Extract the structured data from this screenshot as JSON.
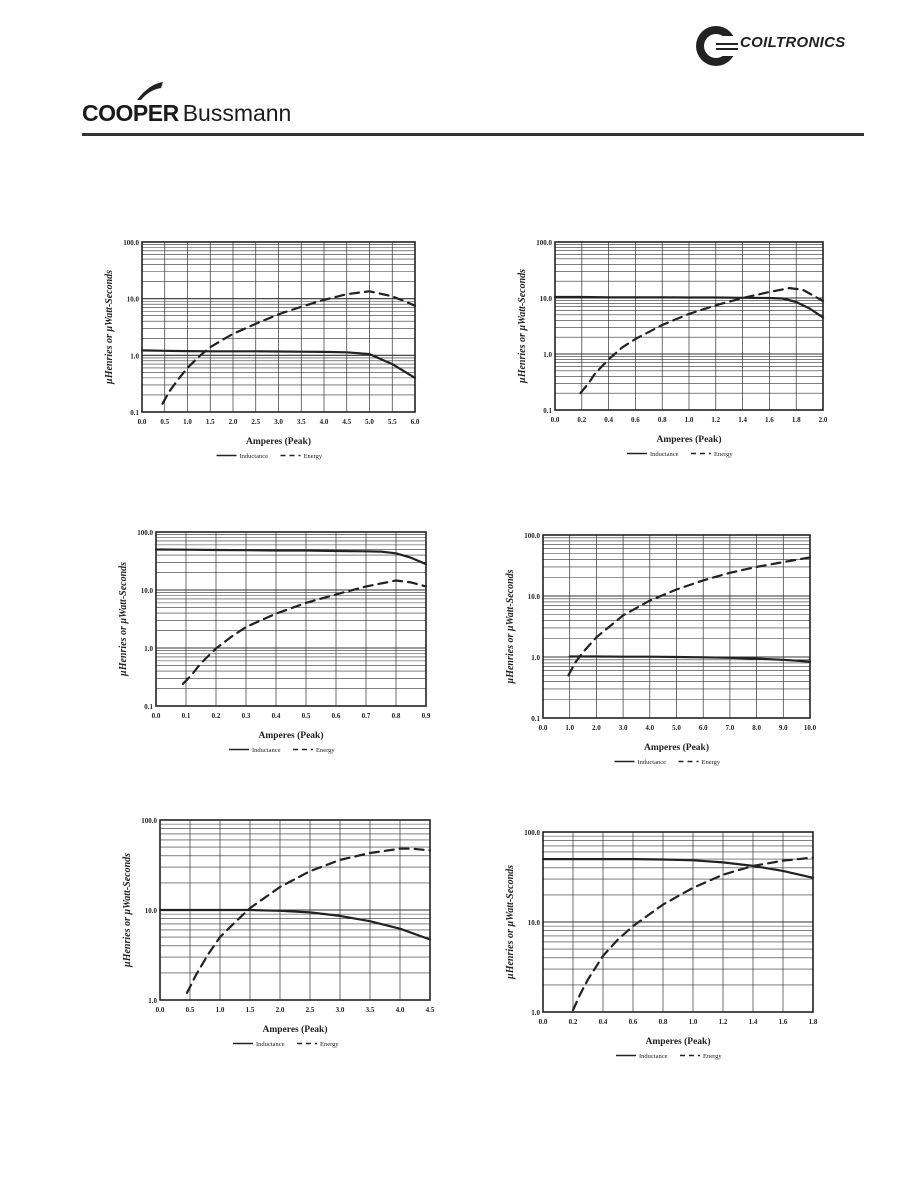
{
  "brand": {
    "coiltronics": "COILTRONICS",
    "cooper_bold": "COOPER",
    "cooper_regular": "Bussmann"
  },
  "chart_data": [
    {
      "type": "line",
      "log_y": true,
      "grid": true,
      "legend_position": "bottom",
      "ylabel": "µHenries or  µWatt-Seconds",
      "xlabel": "Amperes (Peak)",
      "xlim": [
        0,
        6
      ],
      "ylim": [
        0.1,
        100
      ],
      "xticks": [
        "0.0",
        "0.5",
        "1.0",
        "1.5",
        "2.0",
        "2.5",
        "3.0",
        "3.5",
        "4.0",
        "4.5",
        "5.0",
        "5.5",
        "6.0"
      ],
      "yticks": [
        {
          "v": 0.1,
          "l": "0.1"
        },
        {
          "v": 1,
          "l": "1.0"
        },
        {
          "v": 10,
          "l": "10.0"
        },
        {
          "v": 100,
          "l": "100.0"
        }
      ],
      "series": [
        {
          "name": "Inductance",
          "style": "solid",
          "x": [
            0,
            0.5,
            1,
            1.5,
            2,
            2.5,
            3,
            3.5,
            4,
            4.5,
            5,
            5.5,
            6
          ],
          "y": [
            1.22,
            1.2,
            1.19,
            1.18,
            1.18,
            1.18,
            1.17,
            1.16,
            1.15,
            1.13,
            1.05,
            0.7,
            0.4
          ]
        },
        {
          "name": "Energy",
          "style": "dashed",
          "x": [
            0.45,
            0.6,
            0.8,
            1,
            1.25,
            1.5,
            2,
            2.5,
            3,
            3.5,
            4,
            4.5,
            5,
            5.5,
            6
          ],
          "y": [
            0.14,
            0.23,
            0.38,
            0.6,
            0.95,
            1.4,
            2.4,
            3.6,
            5.3,
            7.2,
            9.5,
            12,
            13.5,
            11,
            7.5
          ]
        }
      ]
    },
    {
      "type": "line",
      "log_y": true,
      "grid": true,
      "legend_position": "bottom",
      "ylabel": "µHenries or  µWatt-Seconds",
      "xlabel": "Amperes (Peak)",
      "xlim": [
        0,
        2
      ],
      "ylim": [
        0.1,
        100
      ],
      "xticks": [
        "0.0",
        "0.2",
        "0.4",
        "0.6",
        "0.8",
        "1.0",
        "1.2",
        "1.4",
        "1.6",
        "1.8",
        "2.0"
      ],
      "yticks": [
        {
          "v": 0.1,
          "l": "0.1"
        },
        {
          "v": 1,
          "l": "1.0"
        },
        {
          "v": 10,
          "l": "10.0"
        },
        {
          "v": 100,
          "l": "100.0"
        }
      ],
      "series": [
        {
          "name": "Inductance",
          "style": "solid",
          "x": [
            0,
            0.2,
            0.4,
            0.6,
            0.8,
            1,
            1.2,
            1.4,
            1.6,
            1.7,
            1.8,
            1.9,
            2
          ],
          "y": [
            10.4,
            10.4,
            10.3,
            10.3,
            10.3,
            10.2,
            10.2,
            10.1,
            10,
            9.8,
            8.5,
            6.5,
            4.5
          ]
        },
        {
          "name": "Energy",
          "style": "dashed",
          "x": [
            0.19,
            0.25,
            0.3,
            0.4,
            0.5,
            0.6,
            0.8,
            1,
            1.2,
            1.4,
            1.6,
            1.75,
            1.85,
            2
          ],
          "y": [
            0.2,
            0.3,
            0.45,
            0.8,
            1.3,
            1.85,
            3.3,
            5.2,
            7.4,
            10,
            12.8,
            15,
            14,
            8.8
          ]
        }
      ]
    },
    {
      "type": "line",
      "log_y": true,
      "grid": true,
      "legend_position": "bottom",
      "ylabel": "µHenries or  µWatt-Seconds",
      "xlabel": "Amperes (Peak)",
      "xlim": [
        0,
        0.9
      ],
      "ylim": [
        0.1,
        100
      ],
      "xticks": [
        "0.0",
        "0.1",
        "0.2",
        "0.3",
        "0.4",
        "0.5",
        "0.6",
        "0.7",
        "0.8",
        "0.9"
      ],
      "yticks": [
        {
          "v": 0.1,
          "l": "0.1"
        },
        {
          "v": 1,
          "l": "1.0"
        },
        {
          "v": 10,
          "l": "10.0"
        },
        {
          "v": 100,
          "l": "100.0"
        }
      ],
      "series": [
        {
          "name": "Inductance",
          "style": "solid",
          "x": [
            0,
            0.1,
            0.2,
            0.3,
            0.4,
            0.5,
            0.6,
            0.7,
            0.75,
            0.8,
            0.85,
            0.9
          ],
          "y": [
            50,
            49.5,
            49,
            48.5,
            48,
            48,
            47,
            46.5,
            46,
            43,
            36,
            28
          ]
        },
        {
          "name": "Energy",
          "style": "dashed",
          "x": [
            0.09,
            0.12,
            0.15,
            0.2,
            0.25,
            0.3,
            0.4,
            0.5,
            0.6,
            0.7,
            0.8,
            0.85,
            0.9
          ],
          "y": [
            0.24,
            0.35,
            0.55,
            0.98,
            1.55,
            2.3,
            3.9,
            6,
            8.4,
            11.5,
            14.6,
            13.5,
            11.5
          ]
        }
      ]
    },
    {
      "type": "line",
      "log_y": true,
      "grid": true,
      "legend_position": "bottom",
      "ylabel": "µHenries or  µWatt-Seconds",
      "xlabel": "Amperes (Peak)",
      "xlim": [
        0,
        10
      ],
      "ylim": [
        0.1,
        100
      ],
      "xticks": [
        "0.0",
        "1.0",
        "2.0",
        "3.0",
        "4.0",
        "5.0",
        "6.0",
        "7.0",
        "8.0",
        "9.0",
        "10.0"
      ],
      "yticks": [
        {
          "v": 0.1,
          "l": "0.1"
        },
        {
          "v": 1,
          "l": "1.0"
        },
        {
          "v": 10,
          "l": "10.0"
        },
        {
          "v": 100,
          "l": "100.0"
        }
      ],
      "series": [
        {
          "name": "Inductance",
          "style": "solid",
          "x": [
            1,
            2,
            3,
            4,
            5,
            6,
            7,
            8,
            9,
            10
          ],
          "y": [
            1.02,
            1.02,
            1.01,
            1.01,
            1.0,
            0.99,
            0.97,
            0.94,
            0.9,
            0.84
          ]
        },
        {
          "name": "Energy",
          "style": "dashed",
          "x": [
            0.95,
            1.2,
            1.5,
            2,
            3,
            4,
            5,
            6,
            7,
            8,
            9,
            10
          ],
          "y": [
            0.5,
            0.8,
            1.2,
            2.1,
            4.8,
            8.4,
            12.8,
            18,
            24,
            30,
            36,
            43
          ]
        }
      ]
    },
    {
      "type": "line",
      "log_y": true,
      "grid": true,
      "legend_position": "bottom",
      "ylabel": "µHenries or  µWatt-Seconds",
      "xlabel": "Amperes (Peak)",
      "xlim": [
        0,
        4.5
      ],
      "ylim": [
        1,
        100
      ],
      "xticks": [
        "0.0",
        "0.5",
        "1.0",
        "1.5",
        "2.0",
        "2.5",
        "3.0",
        "3.5",
        "4.0",
        "4.5"
      ],
      "yticks": [
        {
          "v": 1,
          "l": "1.0"
        },
        {
          "v": 10,
          "l": "10.0"
        },
        {
          "v": 100,
          "l": "100.0"
        }
      ],
      "series": [
        {
          "name": "Inductance",
          "style": "solid",
          "x": [
            0,
            0.5,
            1,
            1.5,
            2,
            2.5,
            3,
            3.5,
            4,
            4.5
          ],
          "y": [
            10,
            10,
            10,
            10,
            9.8,
            9.4,
            8.6,
            7.5,
            6.2,
            4.7
          ]
        },
        {
          "name": "Energy",
          "style": "dashed",
          "x": [
            0.45,
            0.6,
            0.8,
            1,
            1.25,
            1.5,
            2,
            2.5,
            3,
            3.5,
            4,
            4.2,
            4.5
          ],
          "y": [
            1.2,
            1.9,
            3.2,
            5,
            7.3,
            10.5,
            18,
            27,
            36,
            43,
            48,
            48,
            46
          ]
        }
      ]
    },
    {
      "type": "line",
      "log_y": true,
      "grid": true,
      "legend_position": "bottom",
      "ylabel": "µHenries or  µWatt-Seconds",
      "xlabel": "Amperes (Peak)",
      "xlim": [
        0,
        1.8
      ],
      "ylim": [
        1,
        100
      ],
      "xticks": [
        "0.0",
        "0.2",
        "0.4",
        "0.6",
        "0.8",
        "1.0",
        "1.2",
        "1.4",
        "1.6",
        "1.8"
      ],
      "yticks": [
        {
          "v": 1,
          "l": "1.0"
        },
        {
          "v": 10,
          "l": "10.0"
        },
        {
          "v": 100,
          "l": "100.0"
        }
      ],
      "series": [
        {
          "name": "Inductance",
          "style": "solid",
          "x": [
            0,
            0.2,
            0.4,
            0.6,
            0.8,
            1,
            1.2,
            1.4,
            1.6,
            1.8
          ],
          "y": [
            50,
            50,
            50,
            50,
            49.5,
            48.5,
            46,
            42,
            37,
            31
          ]
        },
        {
          "name": "Energy",
          "style": "dashed",
          "x": [
            0.2,
            0.25,
            0.3,
            0.4,
            0.5,
            0.6,
            0.8,
            1,
            1.2,
            1.4,
            1.6,
            1.8
          ],
          "y": [
            1.05,
            1.6,
            2.3,
            4.2,
            6.4,
            9,
            15.6,
            24,
            33.5,
            42,
            48,
            52
          ]
        }
      ]
    }
  ]
}
